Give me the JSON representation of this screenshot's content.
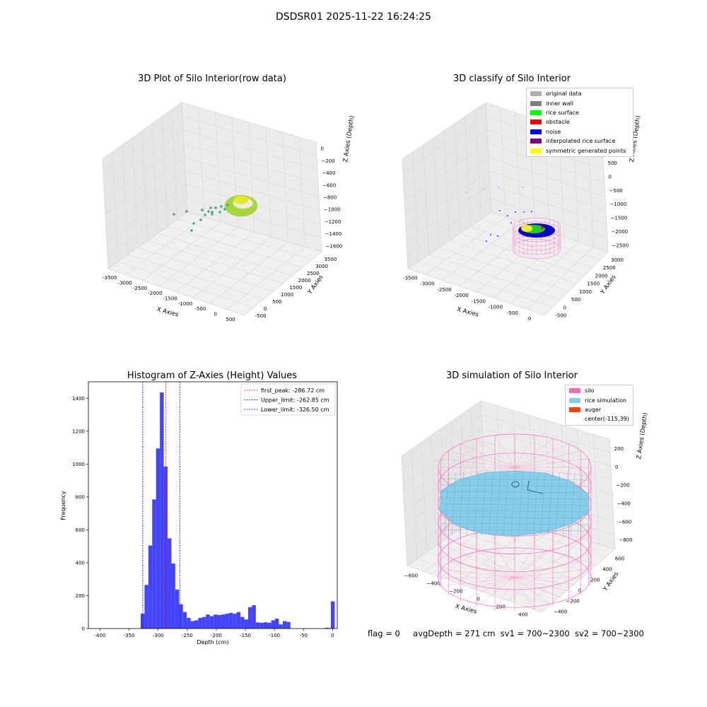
{
  "figure_title": "DSDSR01 2025-11-22 16:24:25",
  "status": {
    "flag": "flag = 0",
    "avg_depth": "avgDepth = 271 cm",
    "sv1": "sv1 = 700~2300",
    "sv2": "sv2 = 700~2300"
  },
  "chart_data": [
    {
      "type": "scatter",
      "projection": "3d",
      "title": "3D Plot of Silo Interior(row data)",
      "xlabel": "X Axies",
      "ylabel": "Y Axies",
      "zlabel": "Z Axies (Depth)",
      "x_ticks": [
        "-3500",
        "-3000",
        "-2500",
        "-2000",
        "-1500",
        "-1000",
        "-500",
        "0",
        "500"
      ],
      "y_ticks": [
        "-500",
        "0",
        "500",
        "1000",
        "1500",
        "2000",
        "2500",
        "3000",
        "3500"
      ],
      "z_ticks": [
        "0",
        "−200",
        "−400",
        "−600",
        "−800",
        "−1000",
        "−1200",
        "−1400",
        "−1600"
      ],
      "colors": {
        "point_cloud": "#a6d934",
        "scatter_outliers": "#3fae84",
        "gray_points": "#888888"
      }
    },
    {
      "type": "scatter",
      "projection": "3d",
      "title": "3D classify of Silo Interior",
      "xlabel": "X Axies",
      "ylabel": "Y Axies",
      "zlabel": "Z Axies (Depth)",
      "x_ticks": [
        "-3500",
        "-3000",
        "-2500",
        "-2000",
        "-1500",
        "-1000",
        "-500",
        "0"
      ],
      "y_ticks": [
        "-500",
        "0",
        "500",
        "1000",
        "1500",
        "2000",
        "2500",
        "3000"
      ],
      "z_ticks": [
        "1000",
        "500",
        "0",
        "−500",
        "−1000",
        "−1500",
        "−2000",
        "−2500"
      ],
      "legend": [
        {
          "label": "original data",
          "color": "#b0b0b0"
        },
        {
          "label": "inner wall",
          "color": "#808080"
        },
        {
          "label": "rice surface",
          "color": "#00ff00"
        },
        {
          "label": "obstacle",
          "color": "#ff0000"
        },
        {
          "label": "noise",
          "color": "#0000ff"
        },
        {
          "label": "interpolated rice surface",
          "color": "#800080"
        },
        {
          "label": "symmetric generated points",
          "color": "#ffff00"
        }
      ],
      "legend_placement": "top-right"
    },
    {
      "type": "bar",
      "title": "Histogram of Z-Axies (Height) Values",
      "xlabel": "Depth (cm)",
      "ylabel": "Frequency",
      "xlim": [
        -420,
        8
      ],
      "ylim": [
        0,
        1500
      ],
      "x_ticks": [
        -400,
        -350,
        -300,
        -250,
        -200,
        -150,
        -100,
        -50,
        0
      ],
      "y_ticks": [
        0,
        200,
        400,
        600,
        800,
        1000,
        1200,
        1400
      ],
      "bin_width": 6.6,
      "bin_starts": [
        -330,
        -323.4,
        -316.8,
        -310.2,
        -303.6,
        -297,
        -290.4,
        -283.8,
        -277.2,
        -270.6,
        -264,
        -257.4,
        -250.8,
        -244.2,
        -237.6,
        -231,
        -224.4,
        -217.8,
        -211.2,
        -204.6,
        -198,
        -191.4,
        -184.8,
        -178.2,
        -171.6,
        -165,
        -158.4,
        -151.8,
        -145.2,
        -138.6,
        -132,
        -125.4,
        -118.8,
        -112.2,
        -105.6,
        -99,
        -92.4,
        -85.8,
        -79.2,
        -72.6,
        -66,
        -59.4,
        -52.8,
        -46.2,
        -39.6,
        -33,
        -26.4,
        -19.8,
        -13.2,
        -6.6,
        -3
      ],
      "values": [
        90,
        265,
        505,
        785,
        1095,
        1435,
        985,
        548,
        395,
        237,
        148,
        100,
        65,
        45,
        50,
        65,
        70,
        85,
        75,
        85,
        82,
        85,
        90,
        95,
        90,
        100,
        70,
        55,
        130,
        142,
        37,
        35,
        38,
        35,
        50,
        60,
        25,
        45,
        40,
        0,
        0,
        0,
        0,
        0,
        0,
        0,
        0,
        0,
        5,
        3,
        165
      ],
      "bar_color": "#4444ff",
      "vlines": [
        {
          "label": "first_peak: -286.72 cm",
          "x": -286.72,
          "color": "#ff0000"
        },
        {
          "label": "Upper_limit: -262.85 cm",
          "x": -262.85,
          "color": "#0000ff"
        },
        {
          "label": "Lower_limit: -326.50 cm",
          "x": -326.5,
          "color": "#0000ff"
        }
      ],
      "legend_placement": "top-right"
    },
    {
      "type": "surface",
      "projection": "3d",
      "title": "3D simulation of Silo Interior",
      "xlabel": "X Axies",
      "ylabel": "Y Axies",
      "zlabel": "Z Axies (Depth)",
      "x_ticks": [
        "−600",
        "−400",
        "−200",
        "0",
        "200",
        "400"
      ],
      "y_ticks": [
        "−400",
        "−200",
        "0",
        "200",
        "400",
        "600"
      ],
      "z_ticks": [
        "200",
        "0",
        "−200",
        "−400",
        "−600",
        "−800"
      ],
      "legend": [
        {
          "label": "silo",
          "color": "#ff69b4"
        },
        {
          "label": "rice simulation",
          "color": "#87ceeb"
        },
        {
          "label": "auger",
          "color": "#ff4500"
        },
        {
          "label": "center(-115,39)",
          "color": ""
        }
      ],
      "legend_placement": "top-right"
    }
  ]
}
